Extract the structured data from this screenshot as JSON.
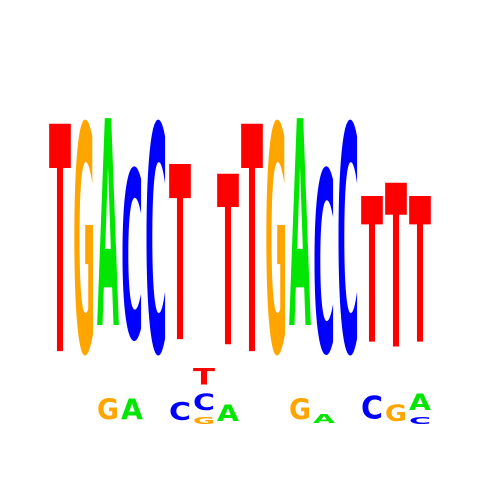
{
  "colors": {
    "A": "#00e600",
    "C": "#0000ff",
    "G": "#ffa500",
    "T": "#ff0000",
    "background": "#ffffff"
  },
  "motif": {
    "max_bits": 2,
    "positions": [
      {
        "letters": [
          {
            "base": "T",
            "height": 1.0
          }
        ]
      },
      {
        "letters": [
          {
            "base": "G",
            "height": 1.0
          }
        ]
      },
      {
        "letters": [
          {
            "base": "G",
            "height": 0.09
          },
          {
            "base": "A",
            "height": 0.91
          }
        ]
      },
      {
        "letters": [
          {
            "base": "A",
            "height": 0.09
          },
          {
            "base": "C",
            "height": 0.74
          }
        ]
      },
      {
        "letters": [
          {
            "base": "C",
            "height": 1.0
          }
        ]
      },
      {
        "letters": [
          {
            "base": "C",
            "height": 0.08
          },
          {
            "base": "T",
            "height": 0.77
          }
        ]
      },
      {
        "letters": [
          {
            "base": "G",
            "height": 0.03
          },
          {
            "base": "C",
            "height": 0.07
          },
          {
            "base": "T",
            "height": 0.07
          }
        ]
      },
      {
        "letters": [
          {
            "base": "A",
            "height": 0.07
          },
          {
            "base": "T",
            "height": 0.75
          }
        ]
      },
      {
        "letters": [
          {
            "base": "T",
            "height": 1.0
          }
        ]
      },
      {
        "letters": [
          {
            "base": "G",
            "height": 1.0
          }
        ]
      },
      {
        "letters": [
          {
            "base": "G",
            "height": 0.09
          },
          {
            "base": "A",
            "height": 0.91
          }
        ]
      },
      {
        "letters": [
          {
            "base": "A",
            "height": 0.04
          },
          {
            "base": "C",
            "height": 0.8
          }
        ]
      },
      {
        "letters": [
          {
            "base": "C",
            "height": 1.0
          }
        ]
      },
      {
        "letters": [
          {
            "base": "C",
            "height": 0.1
          },
          {
            "base": "T",
            "height": 0.64
          }
        ]
      },
      {
        "letters": [
          {
            "base": "G",
            "height": 0.07
          },
          {
            "base": "T",
            "height": 0.72
          }
        ]
      },
      {
        "letters": [
          {
            "base": "C",
            "height": 0.03
          },
          {
            "base": "A",
            "height": 0.07
          },
          {
            "base": "T",
            "height": 0.64
          }
        ]
      }
    ]
  }
}
